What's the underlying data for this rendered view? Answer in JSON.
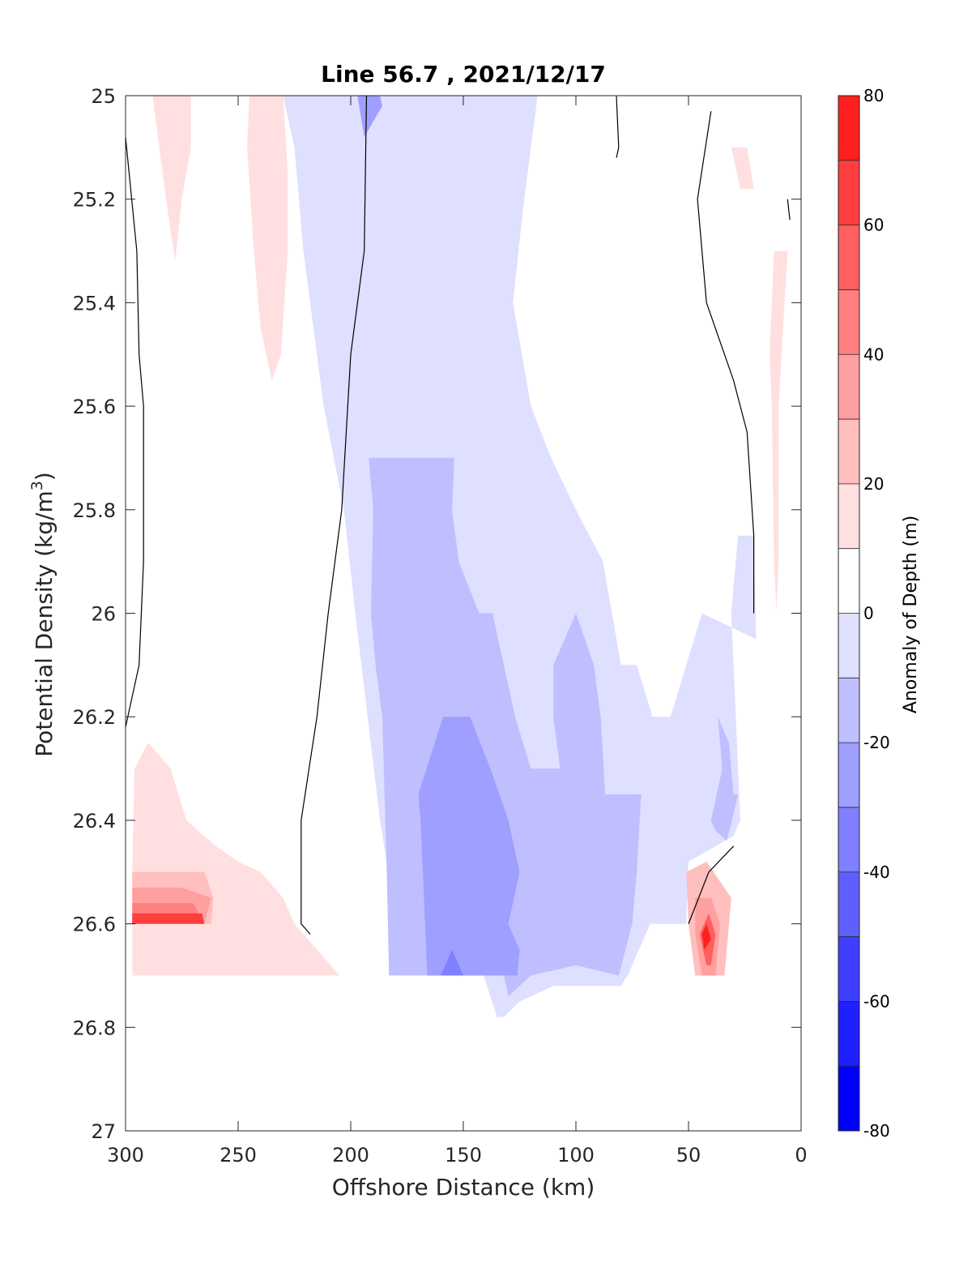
{
  "chart_data": {
    "type": "heatmap",
    "title": "Line 56.7 , 2021/12/17",
    "xlabel": "Offshore Distance (km)",
    "ylabel": "Potential Density (kg/m",
    "ylabel_superscript": "3",
    "ylabel_suffix": ")",
    "xlim": [
      300,
      0
    ],
    "x_reversed": true,
    "ylim": [
      25,
      27
    ],
    "y_reversed": true,
    "x_ticks": [
      300,
      250,
      200,
      150,
      100,
      50,
      0
    ],
    "y_ticks": [
      25,
      25.2,
      25.4,
      25.6,
      25.8,
      26,
      26.2,
      26.4,
      26.6,
      26.8,
      27
    ],
    "grid": false,
    "colorbar": {
      "label": "Anomaly of Depth (m)",
      "range": [
        -80,
        80
      ],
      "level_step": 10,
      "ticks": [
        -80,
        -60,
        -40,
        -20,
        0,
        20,
        40,
        60,
        80
      ],
      "colors": {
        "-80": "#0000ff",
        "-70": "#1f1fff",
        "-60": "#3f3fff",
        "-50": "#5f5fff",
        "-40": "#7f7fff",
        "-30": "#9f9fff",
        "-20": "#bfbfff",
        "-10": "#dfdfff",
        "0": "#ffffff",
        "10": "#ffdfdf",
        "20": "#ffbfbf",
        "30": "#ff9f9f",
        "40": "#ff7f7f",
        "50": "#ff5f5f",
        "60": "#ff3f3f",
        "70": "#ff1f1f"
      }
    },
    "regions": [
      {
        "level": -10,
        "polygon": [
          [
            176,
            26.7
          ],
          [
            187,
            26.4
          ],
          [
            198,
            26.0
          ],
          [
            203,
            25.8
          ],
          [
            212,
            25.6
          ],
          [
            221,
            25.3
          ],
          [
            225,
            25.1
          ],
          [
            230,
            25.0
          ],
          [
            117,
            25.0
          ],
          [
            123,
            25.2
          ],
          [
            128,
            25.4
          ],
          [
            120,
            25.6
          ],
          [
            111,
            25.7
          ],
          [
            100,
            25.8
          ],
          [
            88,
            25.9
          ],
          [
            80,
            26.1
          ],
          [
            73,
            26.1
          ],
          [
            66,
            26.2
          ],
          [
            58,
            26.2
          ],
          [
            44,
            26.0
          ],
          [
            20,
            26.05
          ],
          [
            21,
            25.85
          ],
          [
            28,
            25.85
          ],
          [
            31,
            26.0
          ],
          [
            29,
            26.2
          ],
          [
            27,
            26.4
          ],
          [
            30,
            26.43
          ],
          [
            50,
            26.48
          ],
          [
            51,
            26.6
          ],
          [
            67,
            26.6
          ],
          [
            77,
            26.7
          ],
          [
            80,
            26.72
          ],
          [
            110,
            26.72
          ],
          [
            125,
            26.75
          ],
          [
            132,
            26.78
          ],
          [
            135,
            26.78
          ],
          [
            141,
            26.7
          ],
          [
            160,
            26.7
          ]
        ]
      },
      {
        "level": -20,
        "polygon": [
          [
            183,
            26.7
          ],
          [
            184,
            26.5
          ],
          [
            186,
            26.2
          ],
          [
            189,
            26.1
          ],
          [
            191,
            26.0
          ],
          [
            190,
            25.8
          ],
          [
            192,
            25.7
          ],
          [
            173,
            25.7
          ],
          [
            154,
            25.7
          ],
          [
            155,
            25.8
          ],
          [
            152,
            25.9
          ],
          [
            143,
            26.0
          ],
          [
            137,
            26.0
          ],
          [
            132,
            26.1
          ],
          [
            127,
            26.2
          ],
          [
            120,
            26.3
          ],
          [
            107,
            26.3
          ],
          [
            110,
            26.2
          ],
          [
            110,
            26.1
          ],
          [
            100,
            26.0
          ],
          [
            92,
            26.1
          ],
          [
            89,
            26.2
          ],
          [
            87,
            26.35
          ],
          [
            71,
            26.35
          ],
          [
            73,
            26.5
          ],
          [
            75,
            26.6
          ],
          [
            81,
            26.7
          ],
          [
            100,
            26.68
          ],
          [
            120,
            26.7
          ],
          [
            130,
            26.74
          ],
          [
            132,
            26.7
          ],
          [
            138,
            26.7
          ],
          [
            155,
            26.7
          ],
          [
            170,
            26.7
          ]
        ]
      },
      {
        "level": -20,
        "polygon": [
          [
            40,
            26.4
          ],
          [
            35,
            26.3
          ],
          [
            37,
            26.2
          ],
          [
            32,
            26.25
          ],
          [
            30,
            26.35
          ],
          [
            28,
            26.35
          ],
          [
            33,
            26.44
          ],
          [
            38,
            26.42
          ]
        ]
      },
      {
        "level": -30,
        "polygon": [
          [
            166,
            26.7
          ],
          [
            168,
            26.5
          ],
          [
            169,
            26.4
          ],
          [
            170,
            26.35
          ],
          [
            159,
            26.2
          ],
          [
            147,
            26.2
          ],
          [
            138,
            26.3
          ],
          [
            130,
            26.4
          ],
          [
            125,
            26.5
          ],
          [
            130,
            26.6
          ],
          [
            125,
            26.65
          ],
          [
            126,
            26.7
          ]
        ]
      },
      {
        "level": -30,
        "polygon": [
          [
            197,
            25.0
          ],
          [
            187,
            25.0
          ],
          [
            186,
            25.02
          ],
          [
            194,
            25.08
          ],
          [
            197,
            25.0
          ]
        ]
      },
      {
        "level": -40,
        "polygon": [
          [
            160,
            26.7
          ],
          [
            155,
            26.65
          ],
          [
            150,
            26.7
          ]
        ]
      },
      {
        "level": 10,
        "polygon": [
          [
            288,
            25.0
          ],
          [
            271,
            25.0
          ],
          [
            271,
            25.1
          ],
          [
            275,
            25.2
          ],
          [
            278,
            25.32
          ],
          [
            282,
            25.2
          ],
          [
            285,
            25.1
          ]
        ]
      },
      {
        "level": 10,
        "polygon": [
          [
            245,
            25.0
          ],
          [
            230,
            25.0
          ],
          [
            228,
            25.15
          ],
          [
            228,
            25.3
          ],
          [
            231,
            25.5
          ],
          [
            235,
            25.55
          ],
          [
            240,
            25.45
          ],
          [
            243,
            25.3
          ],
          [
            246,
            25.1
          ]
        ]
      },
      {
        "level": 10,
        "polygon": [
          [
            297,
            26.7
          ],
          [
            297,
            26.5
          ],
          [
            296,
            26.3
          ],
          [
            290,
            26.25
          ],
          [
            280,
            26.3
          ],
          [
            273,
            26.4
          ],
          [
            260,
            26.45
          ],
          [
            250,
            26.48
          ],
          [
            240,
            26.5
          ],
          [
            230,
            26.55
          ],
          [
            225,
            26.6
          ],
          [
            205,
            26.7
          ]
        ]
      },
      {
        "level": 10,
        "polygon": [
          [
            31,
            25.1
          ],
          [
            24,
            25.1
          ],
          [
            21,
            25.18
          ],
          [
            27,
            25.18
          ]
        ]
      },
      {
        "level": 10,
        "polygon": [
          [
            12,
            25.3
          ],
          [
            6,
            25.3
          ],
          [
            8,
            25.45
          ],
          [
            10,
            25.6
          ],
          [
            10,
            25.9
          ],
          [
            11,
            26.0
          ],
          [
            12,
            25.9
          ],
          [
            13,
            25.6
          ],
          [
            14,
            25.5
          ]
        ]
      },
      {
        "level": 20,
        "polygon": [
          [
            297,
            26.6
          ],
          [
            297,
            26.5
          ],
          [
            290,
            26.5
          ],
          [
            280,
            26.5
          ],
          [
            265,
            26.5
          ],
          [
            261,
            26.55
          ],
          [
            262,
            26.6
          ]
        ]
      },
      {
        "level": 20,
        "polygon": [
          [
            47,
            26.7
          ],
          [
            50,
            26.6
          ],
          [
            51,
            26.5
          ],
          [
            42,
            26.48
          ],
          [
            31,
            26.55
          ],
          [
            34,
            26.7
          ]
        ]
      },
      {
        "level": 30,
        "polygon": [
          [
            297,
            26.6
          ],
          [
            297,
            26.53
          ],
          [
            275,
            26.53
          ],
          [
            262,
            26.55
          ],
          [
            265,
            26.6
          ]
        ]
      },
      {
        "level": 30,
        "polygon": [
          [
            44,
            26.7
          ],
          [
            47,
            26.62
          ],
          [
            47,
            26.55
          ],
          [
            40,
            26.55
          ],
          [
            36,
            26.6
          ],
          [
            38,
            26.7
          ]
        ]
      },
      {
        "level": 40,
        "polygon": [
          [
            297,
            26.6
          ],
          [
            297,
            26.56
          ],
          [
            270,
            26.56
          ],
          [
            265,
            26.6
          ]
        ]
      },
      {
        "level": 50,
        "polygon": [
          [
            42,
            26.68
          ],
          [
            45,
            26.62
          ],
          [
            41,
            26.58
          ],
          [
            38,
            26.62
          ],
          [
            40,
            26.68
          ]
        ]
      },
      {
        "level": 60,
        "polygon": [
          [
            297,
            26.6
          ],
          [
            297,
            26.58
          ],
          [
            266,
            26.58
          ],
          [
            265,
            26.6
          ]
        ]
      },
      {
        "level": 70,
        "polygon": [
          [
            43,
            26.65
          ],
          [
            44,
            26.62
          ],
          [
            42,
            26.6
          ],
          [
            40,
            26.63
          ]
        ]
      }
    ],
    "zero_contours": [
      [
        [
          300,
          25.08
        ],
        [
          295,
          25.3
        ],
        [
          294,
          25.5
        ],
        [
          292,
          25.6
        ],
        [
          292,
          25.9
        ],
        [
          294,
          26.1
        ],
        [
          300,
          26.22
        ]
      ],
      [
        [
          193,
          25.0
        ],
        [
          194,
          25.3
        ],
        [
          200,
          25.5
        ],
        [
          204,
          25.8
        ],
        [
          210,
          26.0
        ],
        [
          215,
          26.2
        ],
        [
          222,
          26.4
        ],
        [
          222,
          26.6
        ],
        [
          218,
          26.62
        ]
      ],
      [
        [
          82,
          25.0
        ],
        [
          81,
          25.1
        ],
        [
          82,
          25.12
        ]
      ],
      [
        [
          40,
          25.03
        ],
        [
          46,
          25.2
        ],
        [
          42,
          25.4
        ],
        [
          30,
          25.55
        ],
        [
          24,
          25.65
        ],
        [
          21,
          25.85
        ],
        [
          21,
          26.0
        ]
      ],
      [
        [
          6,
          25.2
        ],
        [
          5,
          25.24
        ]
      ],
      [
        [
          50,
          26.6
        ],
        [
          41,
          26.5
        ],
        [
          30,
          26.45
        ]
      ]
    ]
  }
}
